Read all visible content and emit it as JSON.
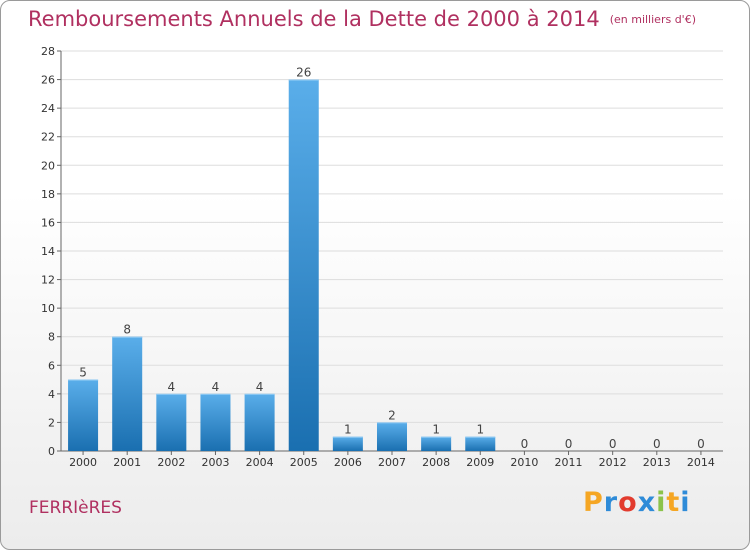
{
  "title": "Remboursements Annuels de la Dette de 2000 à 2014",
  "unit": "(en milliers d'€)",
  "commune": "FERRIèRES",
  "brand": {
    "letters": [
      "P",
      "r",
      "o",
      "x",
      "i",
      "t",
      "i"
    ],
    "colors": [
      "#f5a623",
      "#2e8bd8",
      "#e23b2e",
      "#2e8bd8",
      "#8bc34a",
      "#f5a623",
      "#2e8bd8"
    ]
  },
  "colors": {
    "bar_light": "#5aaeea",
    "bar_dark": "#1a6fb0",
    "title": "#b03060"
  },
  "chart_data": {
    "type": "bar",
    "title": "Remboursements Annuels de la Dette de 2000 à 2014",
    "xlabel": "",
    "ylabel": "",
    "categories": [
      "2000",
      "2001",
      "2002",
      "2003",
      "2004",
      "2005",
      "2006",
      "2007",
      "2008",
      "2009",
      "2010",
      "2011",
      "2012",
      "2013",
      "2014"
    ],
    "values": [
      5,
      8,
      4,
      4,
      4,
      26,
      1,
      2,
      1,
      1,
      0,
      0,
      0,
      0,
      0
    ],
    "ylim": [
      0,
      28
    ],
    "yticks": [
      0,
      2,
      4,
      6,
      8,
      10,
      12,
      14,
      16,
      18,
      20,
      22,
      24,
      26,
      28
    ],
    "grid": true,
    "legend": "none"
  }
}
